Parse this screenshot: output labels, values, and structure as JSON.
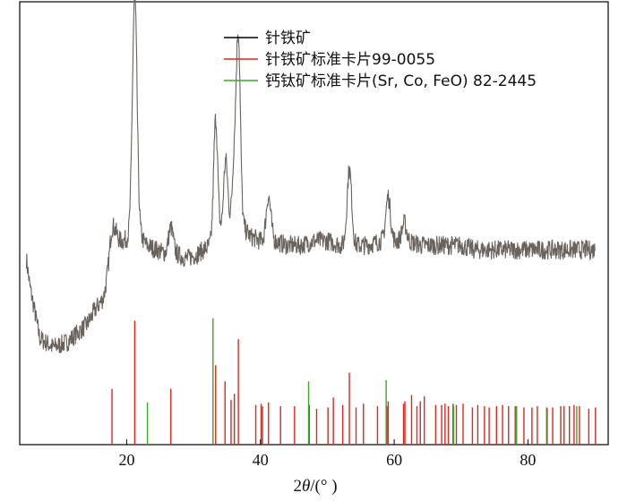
{
  "chart_data": {
    "type": "line",
    "xlabel_prefix": "2",
    "xlabel_theta": "θ",
    "xlabel_suffix": "/(° )",
    "xlim": [
      4,
      92
    ],
    "xticks": [
      "20",
      "40",
      "60",
      "80"
    ],
    "xtick_values": [
      20,
      40,
      60,
      80
    ],
    "ylim": [
      0,
      1
    ],
    "grid": false,
    "legend_position": "top-center",
    "colors": {
      "goethite": "#000000",
      "goethite_ref": "#e8231a",
      "perovskite_ref": "#3aa82a",
      "pattern": "#6a625c"
    },
    "series": [
      {
        "name": "针铁矿",
        "profile": {
          "x": [
            5,
            5.5,
            7,
            9,
            11,
            12.5,
            14,
            15.5,
            16.5,
            17.3,
            17.8,
            18.5,
            19.5,
            20.5,
            21.2,
            22,
            23,
            24.5,
            26,
            27.5,
            29,
            30.5,
            31.5,
            32.5,
            33.5,
            34.5,
            35.5,
            36.5,
            37.5,
            38.5,
            40,
            42,
            44,
            46,
            48,
            50,
            52,
            54,
            56,
            58,
            60,
            62,
            64,
            66,
            68,
            70,
            72,
            75,
            78,
            81,
            84,
            87,
            90
          ],
          "level": [
            0.42,
            0.36,
            0.24,
            0.22,
            0.23,
            0.25,
            0.27,
            0.31,
            0.33,
            0.38,
            0.43,
            0.46,
            0.46,
            0.47,
            0.47,
            0.47,
            0.45,
            0.44,
            0.43,
            0.43,
            0.42,
            0.43,
            0.44,
            0.45,
            0.47,
            0.49,
            0.5,
            0.51,
            0.49,
            0.47,
            0.46,
            0.46,
            0.45,
            0.45,
            0.46,
            0.46,
            0.45,
            0.45,
            0.45,
            0.46,
            0.46,
            0.46,
            0.45,
            0.45,
            0.45,
            0.45,
            0.44,
            0.44,
            0.44,
            0.44,
            0.44,
            0.44,
            0.44
          ]
        },
        "peaks": [
          {
            "x": 17.8,
            "height": 0.06,
            "width": 0.45
          },
          {
            "x": 21.2,
            "height": 0.54,
            "width": 0.35
          },
          {
            "x": 26.6,
            "height": 0.06,
            "width": 0.35
          },
          {
            "x": 33.3,
            "height": 0.27,
            "width": 0.3
          },
          {
            "x": 34.8,
            "height": 0.15,
            "width": 0.3
          },
          {
            "x": 36.1,
            "height": 0.14,
            "width": 0.3
          },
          {
            "x": 36.7,
            "height": 0.41,
            "width": 0.3
          },
          {
            "x": 41.2,
            "height": 0.1,
            "width": 0.35
          },
          {
            "x": 53.3,
            "height": 0.17,
            "width": 0.35
          },
          {
            "x": 59.1,
            "height": 0.1,
            "width": 0.35
          },
          {
            "x": 61.5,
            "height": 0.04,
            "width": 0.35
          }
        ],
        "noise": 0.022
      },
      {
        "name": "针铁矿标准卡片99-0055",
        "positions": [
          17.8,
          21.2,
          26.6,
          33.3,
          34.7,
          35.6,
          36.1,
          36.7,
          39.3,
          40.1,
          40.3,
          41.2,
          43.0,
          45.1,
          47.3,
          48.4,
          50.1,
          50.9,
          52.3,
          53.3,
          54.3,
          55.4,
          57.5,
          58.9,
          59.1,
          61.4,
          61.6,
          62.6,
          63.4,
          63.9,
          64.5,
          66.2,
          67.1,
          67.6,
          68.1,
          68.8,
          69.3,
          70.3,
          71.7,
          72.5,
          73.5,
          74.2,
          75.3,
          76.2,
          77.1,
          78.1,
          79.4,
          80.6,
          81.4,
          82.8,
          83.7,
          84.9,
          85.4,
          86.2,
          86.9,
          87.7,
          89.1,
          90.1
        ],
        "heights": [
          0.45,
          1.0,
          0.45,
          0.64,
          0.51,
          0.36,
          0.41,
          0.85,
          0.32,
          0.33,
          0.31,
          0.34,
          0.31,
          0.31,
          0.32,
          0.29,
          0.3,
          0.38,
          0.32,
          0.58,
          0.3,
          0.33,
          0.31,
          0.31,
          0.35,
          0.33,
          0.35,
          0.4,
          0.31,
          0.35,
          0.39,
          0.32,
          0.32,
          0.33,
          0.31,
          0.33,
          0.32,
          0.33,
          0.3,
          0.32,
          0.31,
          0.3,
          0.31,
          0.32,
          0.31,
          0.31,
          0.3,
          0.3,
          0.31,
          0.3,
          0.3,
          0.31,
          0.31,
          0.31,
          0.32,
          0.31,
          0.29,
          0.3
        ]
      },
      {
        "name": "钙钛矿标准卡片(Sr, Co, FeO) 82-2445",
        "positions": [
          23.1,
          32.9,
          47.2,
          58.8,
          68.9,
          78.3,
          82.9,
          87.3
        ],
        "heights": [
          0.34,
          1.02,
          0.51,
          0.52,
          0.31,
          0.31,
          0.29,
          0.31
        ]
      }
    ]
  }
}
